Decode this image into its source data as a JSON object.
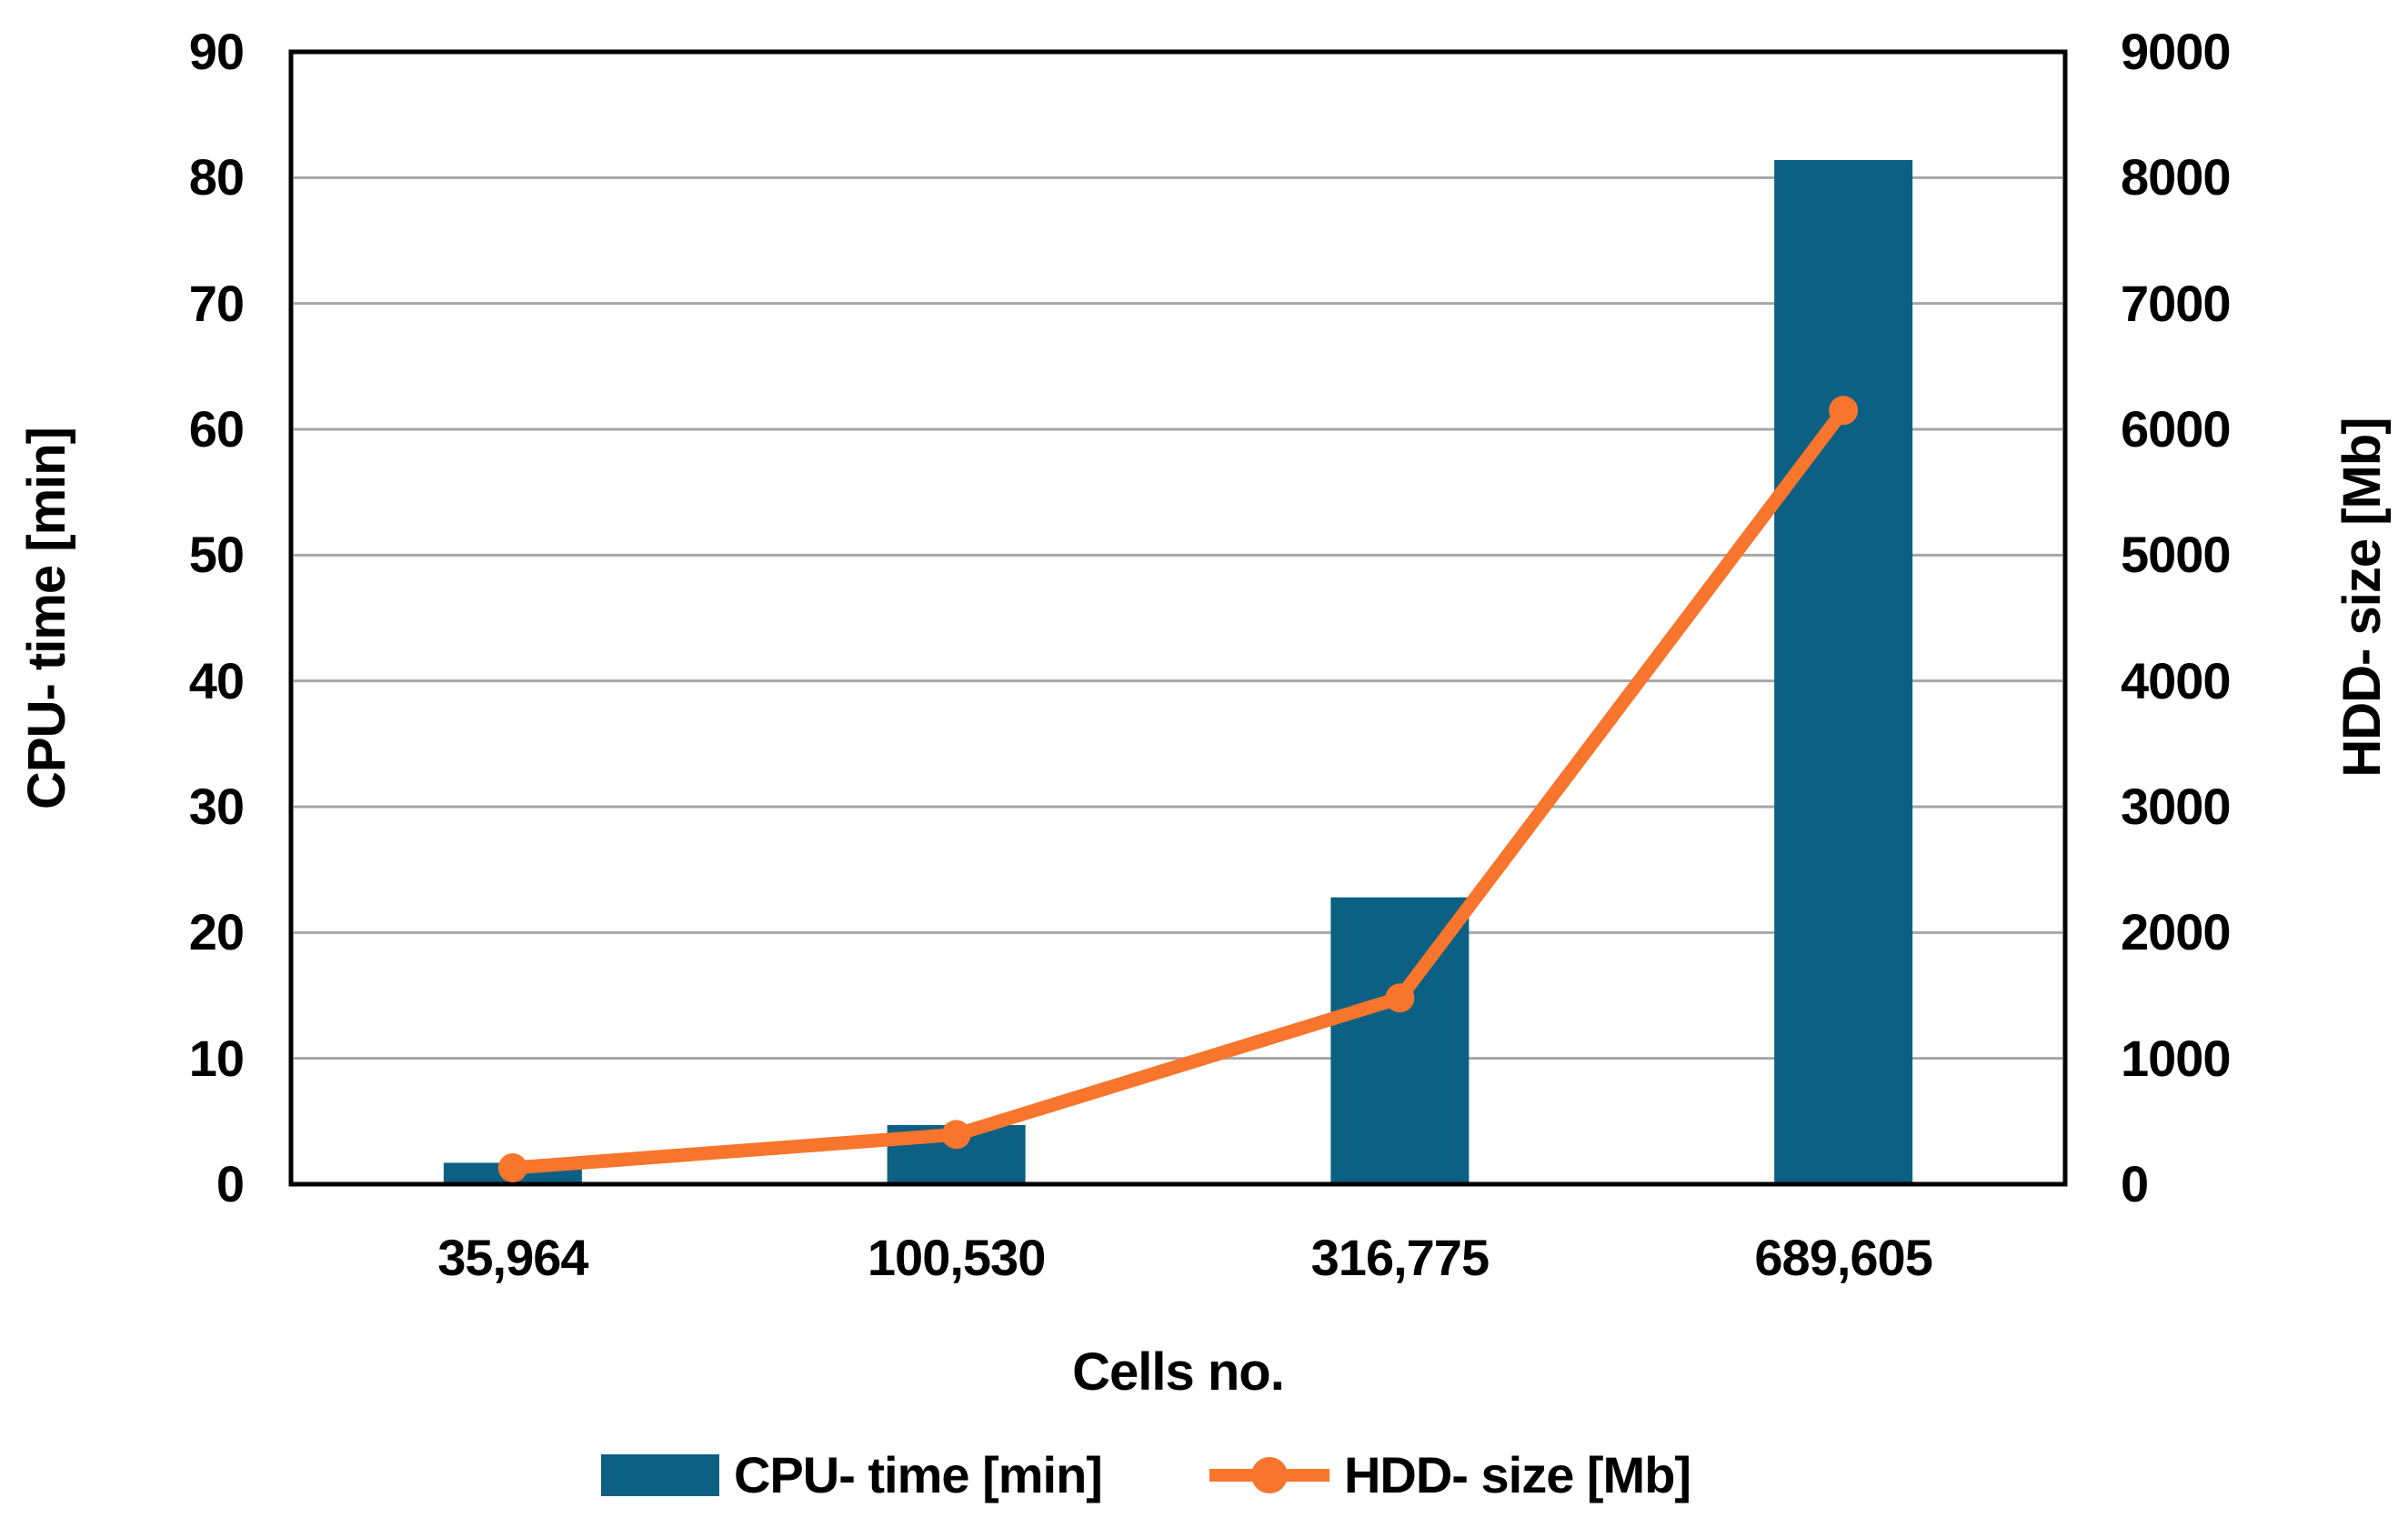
{
  "chart_data": {
    "type": "combo-bar-line",
    "categories": [
      "35,964",
      "100,530",
      "316,775",
      "689,605"
    ],
    "series": [
      {
        "name": "CPU- time [min]",
        "type": "bar",
        "axis": "left",
        "values": [
          1.7,
          4.7,
          22.8,
          81.4
        ]
      },
      {
        "name": "HDD- size [Mb]",
        "type": "line",
        "axis": "right",
        "values": [
          130,
          395,
          1480,
          6150
        ]
      }
    ],
    "xlabel": "Cells no.",
    "left_axis": {
      "title": "CPU- time [min]",
      "min": 0,
      "max": 90,
      "step": 10,
      "ticks": [
        "0",
        "10",
        "20",
        "30",
        "40",
        "50",
        "60",
        "70",
        "80",
        "90"
      ]
    },
    "right_axis": {
      "title": "HDD- size [Mb]",
      "min": 0,
      "max": 9000,
      "step": 1000,
      "ticks": [
        "0",
        "1000",
        "2000",
        "3000",
        "4000",
        "5000",
        "6000",
        "7000",
        "8000",
        "9000"
      ]
    },
    "grid": true,
    "legend_position": "bottom",
    "colors": {
      "bar": "#0B6083",
      "line": "#F7752C",
      "gridline": "#A6A6A6",
      "frame": "#000000",
      "background": "#FFFFFF",
      "text": "#000000"
    }
  },
  "legend": {
    "items": [
      {
        "label": "CPU- time [min]",
        "swatch": "bar-swatch-icon"
      },
      {
        "label": "HDD- size [Mb]",
        "swatch": "line-marker-icon"
      }
    ]
  }
}
